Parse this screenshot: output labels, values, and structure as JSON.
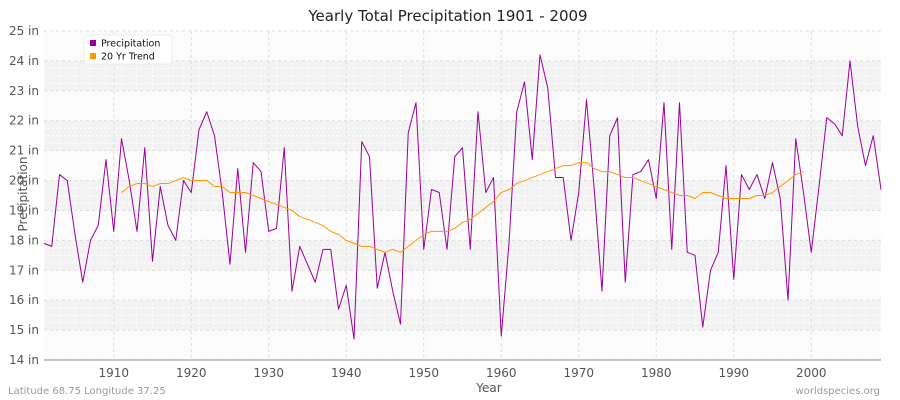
{
  "chart_data": {
    "type": "line",
    "title": "Yearly Total Precipitation 1901 - 2009",
    "xlabel": "Year",
    "ylabel": "Precipitation",
    "xlim": [
      1901,
      2009
    ],
    "ylim": [
      14,
      25
    ],
    "x_ticks": [
      1910,
      1920,
      1930,
      1940,
      1950,
      1960,
      1970,
      1980,
      1990,
      2000
    ],
    "y_ticks": [
      {
        "value": 14,
        "label": "14 in"
      },
      {
        "value": 15,
        "label": "15 in"
      },
      {
        "value": 16,
        "label": "16 in"
      },
      {
        "value": 17,
        "label": "17 in"
      },
      {
        "value": 18,
        "label": "18 in"
      },
      {
        "value": 19,
        "label": "19 in"
      },
      {
        "value": 20,
        "label": "20 in"
      },
      {
        "value": 21,
        "label": "21 in"
      },
      {
        "value": 22,
        "label": "22 in"
      },
      {
        "value": 23,
        "label": "23 in"
      },
      {
        "value": 24,
        "label": "24 in"
      },
      {
        "value": 25,
        "label": "25 in"
      }
    ],
    "legend_position": "top-left",
    "series": [
      {
        "name": "Precipitation",
        "color": "#990099",
        "x": [
          1901,
          1902,
          1903,
          1904,
          1905,
          1906,
          1907,
          1908,
          1909,
          1910,
          1911,
          1912,
          1913,
          1914,
          1915,
          1916,
          1917,
          1918,
          1919,
          1920,
          1921,
          1922,
          1923,
          1924,
          1925,
          1926,
          1927,
          1928,
          1929,
          1930,
          1931,
          1932,
          1933,
          1934,
          1935,
          1936,
          1937,
          1938,
          1939,
          1940,
          1941,
          1942,
          1943,
          1944,
          1945,
          1946,
          1947,
          1948,
          1949,
          1950,
          1951,
          1952,
          1953,
          1954,
          1955,
          1956,
          1957,
          1958,
          1959,
          1960,
          1961,
          1962,
          1963,
          1964,
          1965,
          1966,
          1967,
          1968,
          1969,
          1970,
          1971,
          1972,
          1973,
          1974,
          1975,
          1976,
          1977,
          1978,
          1979,
          1980,
          1981,
          1982,
          1983,
          1984,
          1985,
          1986,
          1987,
          1988,
          1989,
          1990,
          1991,
          1992,
          1993,
          1994,
          1995,
          1996,
          1997,
          1998,
          1999,
          2000,
          2001,
          2002,
          2003,
          2004,
          2005,
          2006,
          2007,
          2008,
          2009
        ],
        "values": [
          17.9,
          17.8,
          20.2,
          20.0,
          18.2,
          16.6,
          18.0,
          18.5,
          20.7,
          18.3,
          21.4,
          20.0,
          18.3,
          21.1,
          17.3,
          19.8,
          18.5,
          18.0,
          20.0,
          19.6,
          21.7,
          22.3,
          21.5,
          19.6,
          17.2,
          20.4,
          17.6,
          20.6,
          20.3,
          18.3,
          18.4,
          21.1,
          16.3,
          17.8,
          17.2,
          16.6,
          17.7,
          17.7,
          15.7,
          16.5,
          14.7,
          21.3,
          20.8,
          16.4,
          17.6,
          16.3,
          15.2,
          21.6,
          22.6,
          17.7,
          19.7,
          19.6,
          17.7,
          20.8,
          21.1,
          17.7,
          22.3,
          19.6,
          20.1,
          14.8,
          17.9,
          22.3,
          23.3,
          20.7,
          24.2,
          23.1,
          20.1,
          20.1,
          18.0,
          19.6,
          22.7,
          19.7,
          16.3,
          21.5,
          22.1,
          16.6,
          20.2,
          20.3,
          20.7,
          19.4,
          22.6,
          17.7,
          22.6,
          17.6,
          17.5,
          15.1,
          17.0,
          17.6,
          20.5,
          16.7,
          20.2,
          19.7,
          20.2,
          19.4,
          20.6,
          19.4,
          16.0,
          21.4,
          19.6,
          17.6,
          19.8,
          22.1,
          21.9,
          21.5,
          24.0,
          21.8,
          20.5,
          21.5,
          19.7
        ]
      },
      {
        "name": "20 Yr Trend",
        "color": "#ff9900",
        "x": [
          1911,
          1912,
          1913,
          1914,
          1915,
          1916,
          1917,
          1918,
          1919,
          1920,
          1921,
          1922,
          1923,
          1924,
          1925,
          1926,
          1927,
          1928,
          1929,
          1930,
          1931,
          1932,
          1933,
          1934,
          1935,
          1936,
          1937,
          1938,
          1939,
          1940,
          1941,
          1942,
          1943,
          1944,
          1945,
          1946,
          1947,
          1948,
          1949,
          1950,
          1951,
          1952,
          1953,
          1954,
          1955,
          1956,
          1957,
          1958,
          1959,
          1960,
          1961,
          1962,
          1963,
          1964,
          1965,
          1966,
          1967,
          1968,
          1969,
          1970,
          1971,
          1972,
          1973,
          1974,
          1975,
          1976,
          1977,
          1978,
          1979,
          1980,
          1981,
          1982,
          1983,
          1984,
          1985,
          1986,
          1987,
          1988,
          1989,
          1990,
          1991,
          1992,
          1993,
          1994,
          1995,
          1996,
          1997,
          1998,
          1999
        ],
        "values": [
          19.6,
          19.8,
          19.9,
          19.9,
          19.8,
          19.9,
          19.9,
          20.0,
          20.1,
          20.0,
          20.0,
          20.0,
          19.8,
          19.8,
          19.6,
          19.6,
          19.6,
          19.5,
          19.4,
          19.3,
          19.2,
          19.1,
          19.0,
          18.8,
          18.7,
          18.6,
          18.5,
          18.3,
          18.2,
          18.0,
          17.9,
          17.8,
          17.8,
          17.7,
          17.6,
          17.7,
          17.6,
          17.8,
          18.0,
          18.2,
          18.3,
          18.3,
          18.3,
          18.4,
          18.6,
          18.7,
          18.9,
          19.1,
          19.3,
          19.6,
          19.7,
          19.9,
          20.0,
          20.1,
          20.2,
          20.3,
          20.4,
          20.5,
          20.5,
          20.6,
          20.6,
          20.4,
          20.3,
          20.3,
          20.2,
          20.1,
          20.1,
          20.0,
          19.9,
          19.8,
          19.7,
          19.6,
          19.5,
          19.5,
          19.4,
          19.6,
          19.6,
          19.5,
          19.4,
          19.4,
          19.4,
          19.4,
          19.5,
          19.5,
          19.6,
          19.8,
          20.0,
          20.2,
          20.3
        ]
      }
    ]
  },
  "footer": {
    "location": "Latitude 68.75 Longitude 37.25",
    "source": "worldspecies.org"
  }
}
